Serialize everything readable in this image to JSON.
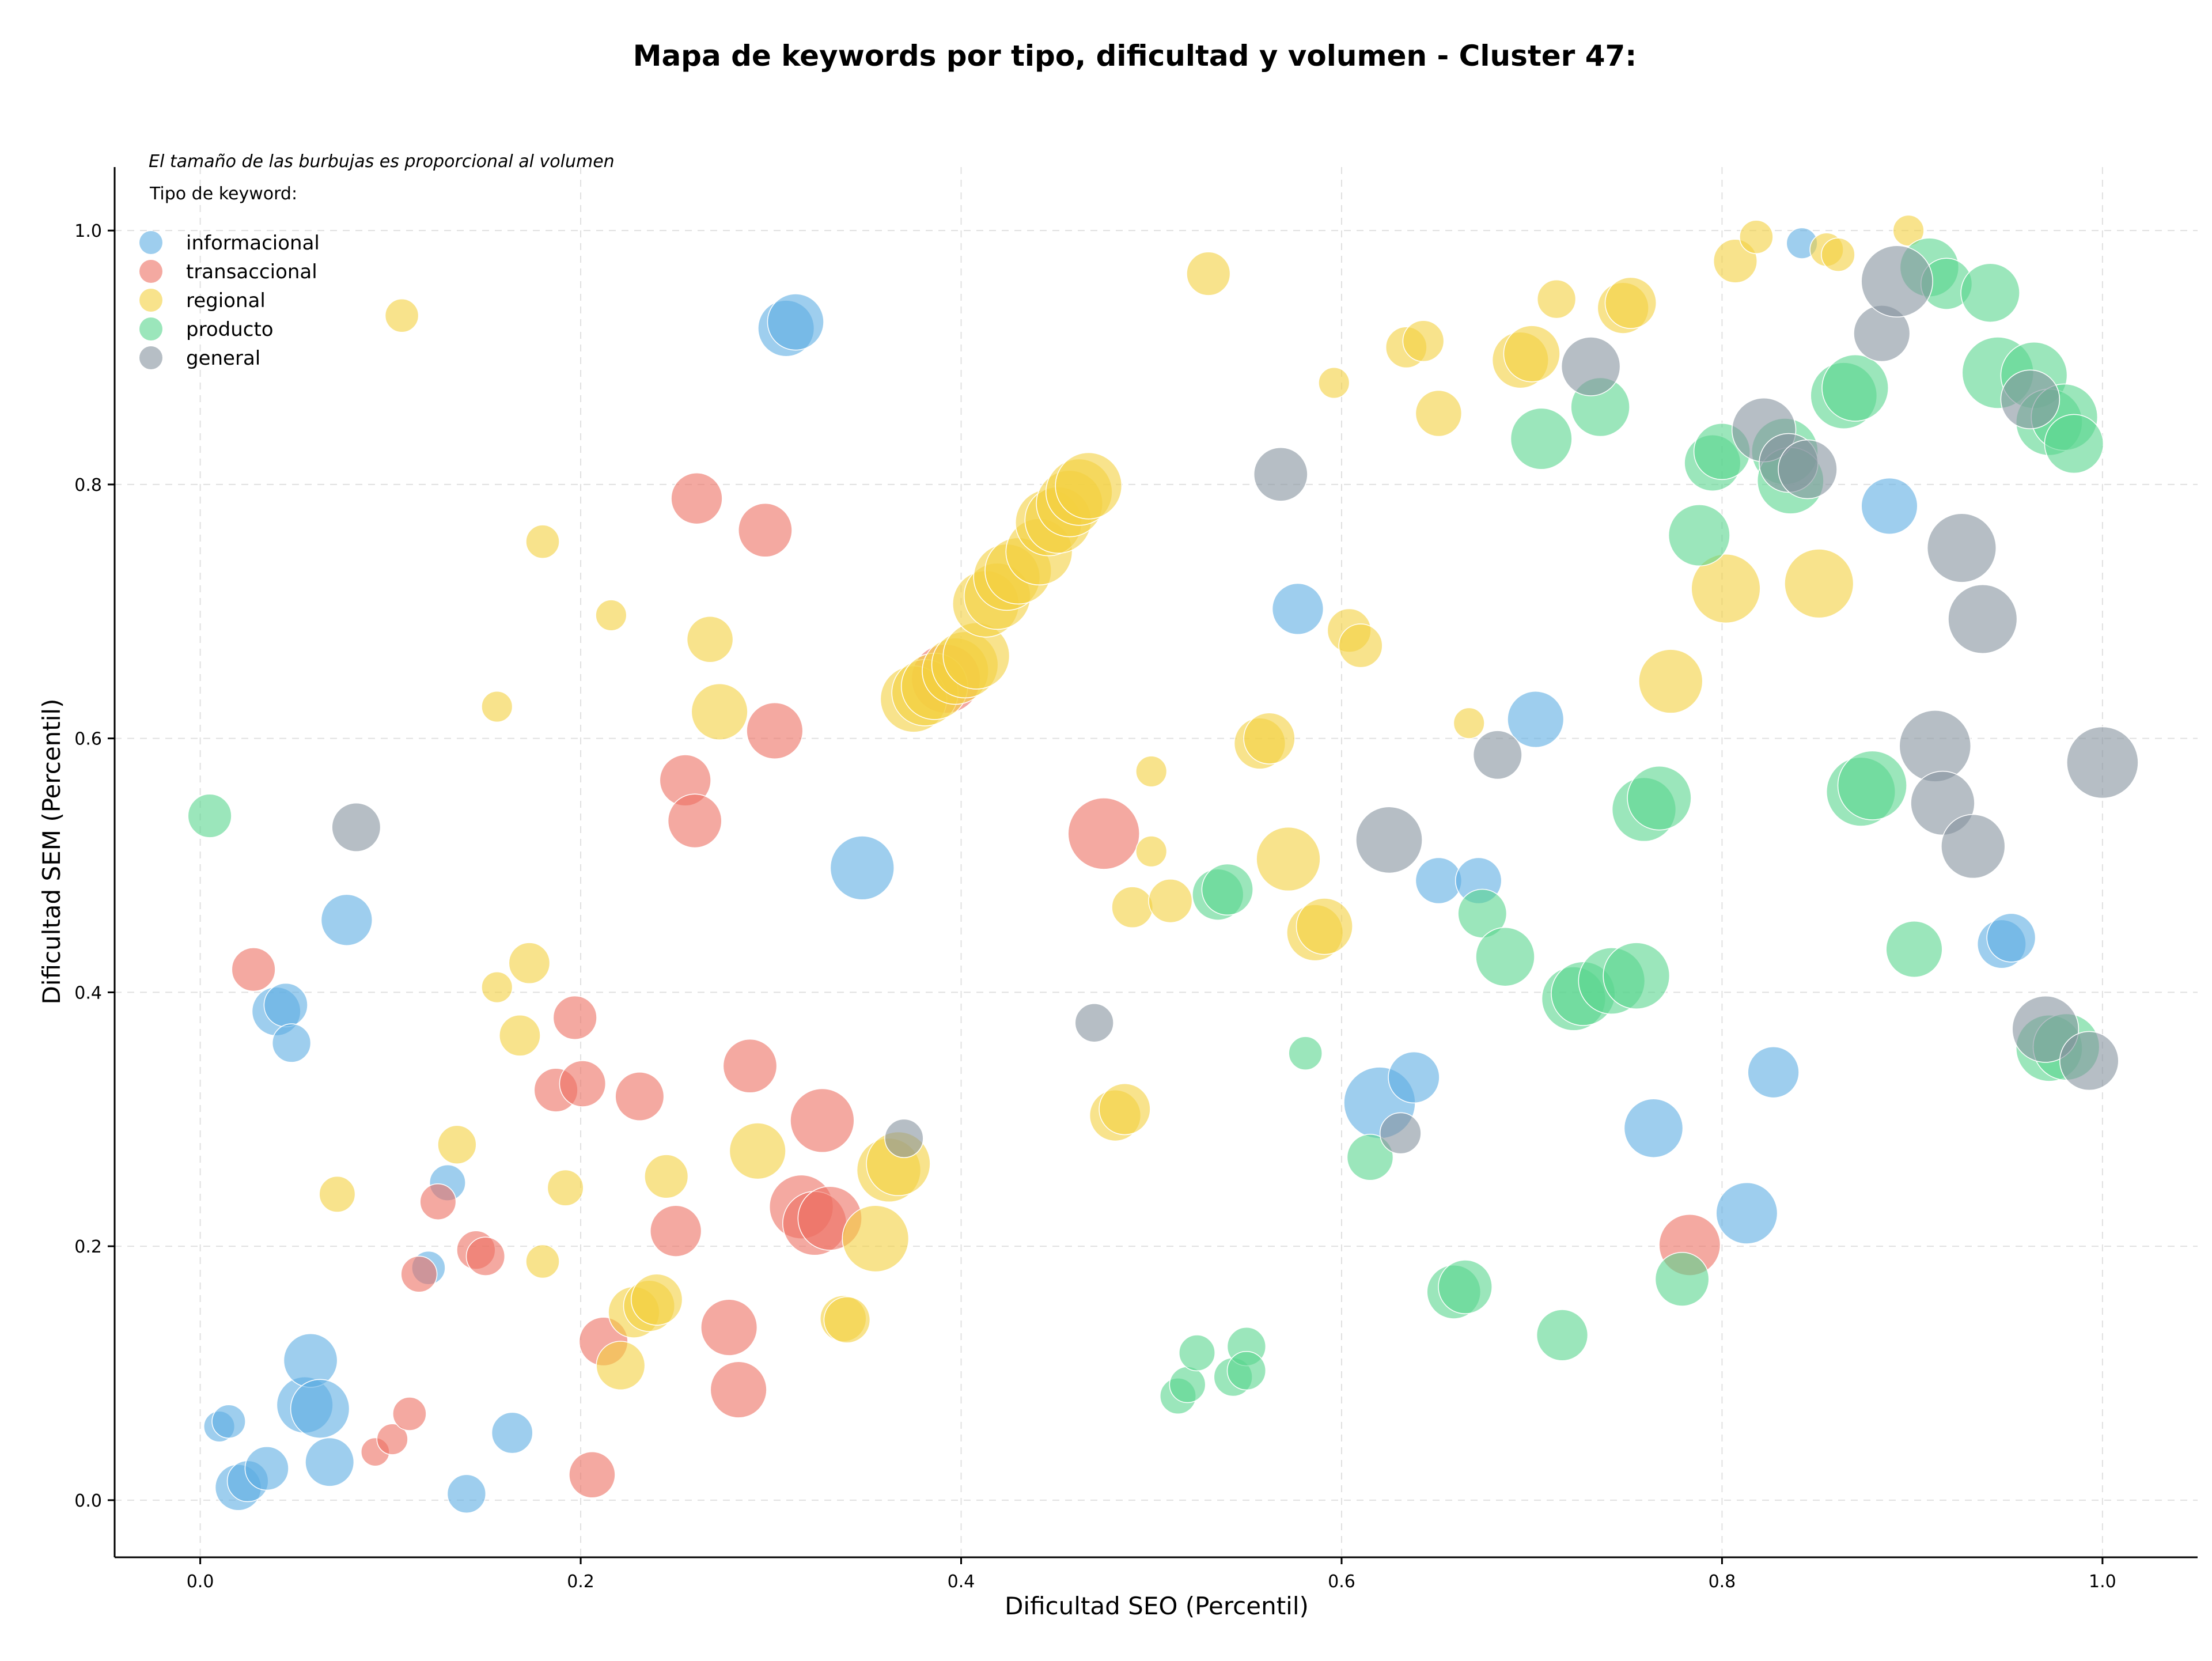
{
  "chart_data": {
    "type": "scatter",
    "title": "Mapa de keywords por tipo, dificultad y volumen - Cluster 47:",
    "xlabel": "Dificultad SEO (Percentil)",
    "ylabel": "Dificultad SEM (Percentil)",
    "xlim": [
      -0.045,
      1.05
    ],
    "ylim": [
      -0.045,
      1.05
    ],
    "x_ticks": [
      "0.0",
      "0.2",
      "0.4",
      "0.6",
      "0.8",
      "1.0"
    ],
    "y_ticks": [
      "0.0",
      "0.2",
      "0.4",
      "0.6",
      "0.8",
      "1.0"
    ],
    "grid": true,
    "annotation": "El tamaño de las burbujas es proporcional al volumen",
    "legend_title": "Tipo de keyword:",
    "legend_position": "top-left",
    "series": [
      {
        "name": "informacional",
        "color": "#5DADE2",
        "points": [
          [
            0.01,
            0.058,
            0.2
          ],
          [
            0.015,
            0.062,
            0.25
          ],
          [
            0.02,
            0.01,
            0.5
          ],
          [
            0.025,
            0.015,
            0.4
          ],
          [
            0.035,
            0.025,
            0.45
          ],
          [
            0.04,
            0.385,
            0.55
          ],
          [
            0.045,
            0.39,
            0.45
          ],
          [
            0.048,
            0.36,
            0.35
          ],
          [
            0.055,
            0.075,
            0.7
          ],
          [
            0.058,
            0.11,
            0.65
          ],
          [
            0.063,
            0.072,
            0.75
          ],
          [
            0.068,
            0.03,
            0.55
          ],
          [
            0.077,
            0.457,
            0.6
          ],
          [
            0.12,
            0.183,
            0.25
          ],
          [
            0.13,
            0.25,
            0.3
          ],
          [
            0.14,
            0.005,
            0.35
          ],
          [
            0.164,
            0.053,
            0.4
          ],
          [
            0.308,
            0.923,
            0.7
          ],
          [
            0.313,
            0.928,
            0.7
          ],
          [
            0.348,
            0.498,
            0.85
          ],
          [
            0.577,
            0.702,
            0.6
          ],
          [
            0.62,
            0.313,
            1.0
          ],
          [
            0.638,
            0.333,
            0.6
          ],
          [
            0.651,
            0.488,
            0.5
          ],
          [
            0.672,
            0.488,
            0.5
          ],
          [
            0.702,
            0.615,
            0.7
          ],
          [
            0.764,
            0.293,
            0.75
          ],
          [
            0.813,
            0.226,
            0.8
          ],
          [
            0.827,
            0.337,
            0.6
          ],
          [
            0.842,
            0.99,
            0.2
          ],
          [
            0.888,
            0.783,
            0.7
          ],
          [
            0.947,
            0.438,
            0.55
          ],
          [
            0.952,
            0.443,
            0.55
          ]
        ]
      },
      {
        "name": "transaccional",
        "color": "#EC7063",
        "points": [
          [
            0.028,
            0.418,
            0.45
          ],
          [
            0.092,
            0.038,
            0.15
          ],
          [
            0.101,
            0.048,
            0.2
          ],
          [
            0.11,
            0.068,
            0.25
          ],
          [
            0.115,
            0.178,
            0.3
          ],
          [
            0.125,
            0.235,
            0.3
          ],
          [
            0.145,
            0.197,
            0.35
          ],
          [
            0.15,
            0.192,
            0.35
          ],
          [
            0.187,
            0.323,
            0.45
          ],
          [
            0.197,
            0.38,
            0.45
          ],
          [
            0.201,
            0.328,
            0.5
          ],
          [
            0.206,
            0.02,
            0.5
          ],
          [
            0.212,
            0.125,
            0.55
          ],
          [
            0.231,
            0.318,
            0.55
          ],
          [
            0.25,
            0.212,
            0.6
          ],
          [
            0.255,
            0.567,
            0.6
          ],
          [
            0.26,
            0.535,
            0.65
          ],
          [
            0.261,
            0.789,
            0.6
          ],
          [
            0.278,
            0.136,
            0.7
          ],
          [
            0.283,
            0.087,
            0.7
          ],
          [
            0.289,
            0.342,
            0.65
          ],
          [
            0.297,
            0.764,
            0.65
          ],
          [
            0.302,
            0.606,
            0.7
          ],
          [
            0.316,
            0.231,
            0.85
          ],
          [
            0.323,
            0.218,
            0.85
          ],
          [
            0.327,
            0.299,
            0.85
          ],
          [
            0.331,
            0.222,
            0.85
          ],
          [
            0.475,
            0.525,
            1.0
          ],
          [
            0.392,
            0.647,
            0.95
          ],
          [
            0.783,
            0.201,
            0.8
          ]
        ]
      },
      {
        "name": "regional",
        "color": "#F4D03F",
        "points": [
          [
            0.072,
            0.241,
            0.3
          ],
          [
            0.106,
            0.933,
            0.25
          ],
          [
            0.135,
            0.28,
            0.35
          ],
          [
            0.156,
            0.404,
            0.2
          ],
          [
            0.156,
            0.625,
            0.2
          ],
          [
            0.168,
            0.366,
            0.4
          ],
          [
            0.173,
            0.423,
            0.4
          ],
          [
            0.18,
            0.188,
            0.25
          ],
          [
            0.18,
            0.755,
            0.25
          ],
          [
            0.192,
            0.246,
            0.3
          ],
          [
            0.216,
            0.697,
            0.2
          ],
          [
            0.221,
            0.106,
            0.55
          ],
          [
            0.228,
            0.148,
            0.6
          ],
          [
            0.236,
            0.153,
            0.6
          ],
          [
            0.24,
            0.158,
            0.6
          ],
          [
            0.245,
            0.255,
            0.45
          ],
          [
            0.268,
            0.678,
            0.5
          ],
          [
            0.273,
            0.621,
            0.7
          ],
          [
            0.293,
            0.275,
            0.7
          ],
          [
            0.338,
            0.143,
            0.5
          ],
          [
            0.34,
            0.142,
            0.5
          ],
          [
            0.355,
            0.206,
            0.9
          ],
          [
            0.362,
            0.26,
            0.85
          ],
          [
            0.367,
            0.265,
            0.85
          ],
          [
            0.375,
            0.631,
            0.9
          ],
          [
            0.381,
            0.636,
            0.9
          ],
          [
            0.386,
            0.641,
            0.9
          ],
          [
            0.397,
            0.653,
            0.9
          ],
          [
            0.402,
            0.658,
            0.9
          ],
          [
            0.408,
            0.665,
            0.9
          ],
          [
            0.413,
            0.706,
            0.9
          ],
          [
            0.419,
            0.712,
            0.9
          ],
          [
            0.424,
            0.727,
            0.9
          ],
          [
            0.43,
            0.732,
            0.9
          ],
          [
            0.441,
            0.747,
            0.9
          ],
          [
            0.446,
            0.77,
            0.9
          ],
          [
            0.451,
            0.772,
            0.9
          ],
          [
            0.457,
            0.785,
            0.9
          ],
          [
            0.462,
            0.794,
            0.9
          ],
          [
            0.467,
            0.799,
            0.9
          ],
          [
            0.481,
            0.303,
            0.6
          ],
          [
            0.486,
            0.308,
            0.6
          ],
          [
            0.49,
            0.467,
            0.4
          ],
          [
            0.5,
            0.511,
            0.2
          ],
          [
            0.5,
            0.574,
            0.2
          ],
          [
            0.51,
            0.472,
            0.45
          ],
          [
            0.53,
            0.966,
            0.45
          ],
          [
            0.557,
            0.596,
            0.6
          ],
          [
            0.562,
            0.6,
            0.6
          ],
          [
            0.572,
            0.505,
            0.85
          ],
          [
            0.586,
            0.447,
            0.7
          ],
          [
            0.591,
            0.452,
            0.7
          ],
          [
            0.596,
            0.88,
            0.2
          ],
          [
            0.604,
            0.685,
            0.45
          ],
          [
            0.61,
            0.673,
            0.45
          ],
          [
            0.634,
            0.908,
            0.4
          ],
          [
            0.643,
            0.913,
            0.4
          ],
          [
            0.651,
            0.856,
            0.5
          ],
          [
            0.667,
            0.612,
            0.2
          ],
          [
            0.694,
            0.898,
            0.7
          ],
          [
            0.7,
            0.903,
            0.7
          ],
          [
            0.713,
            0.946,
            0.35
          ],
          [
            0.748,
            0.939,
            0.6
          ],
          [
            0.752,
            0.943,
            0.6
          ],
          [
            0.773,
            0.645,
            0.85
          ],
          [
            0.802,
            0.718,
            0.95
          ],
          [
            0.807,
            0.976,
            0.45
          ],
          [
            0.818,
            0.995,
            0.25
          ],
          [
            0.851,
            0.722,
            0.95
          ],
          [
            0.855,
            0.985,
            0.25
          ],
          [
            0.861,
            0.981,
            0.25
          ],
          [
            0.898,
            1.0,
            0.2
          ]
        ]
      },
      {
        "name": "producto",
        "color": "#58D68D",
        "points": [
          [
            0.005,
            0.539,
            0.45
          ],
          [
            0.514,
            0.082,
            0.3
          ],
          [
            0.519,
            0.091,
            0.3
          ],
          [
            0.524,
            0.116,
            0.3
          ],
          [
            0.535,
            0.477,
            0.6
          ],
          [
            0.54,
            0.481,
            0.6
          ],
          [
            0.543,
            0.097,
            0.35
          ],
          [
            0.55,
            0.121,
            0.35
          ],
          [
            0.55,
            0.102,
            0.35
          ],
          [
            0.581,
            0.352,
            0.25
          ],
          [
            0.615,
            0.27,
            0.5
          ],
          [
            0.659,
            0.164,
            0.65
          ],
          [
            0.665,
            0.168,
            0.65
          ],
          [
            0.674,
            0.462,
            0.55
          ],
          [
            0.686,
            0.428,
            0.75
          ],
          [
            0.705,
            0.836,
            0.8
          ],
          [
            0.716,
            0.13,
            0.6
          ],
          [
            0.722,
            0.395,
            0.85
          ],
          [
            0.727,
            0.399,
            0.85
          ],
          [
            0.736,
            0.861,
            0.75
          ],
          [
            0.742,
            0.409,
            0.9
          ],
          [
            0.755,
            0.413,
            0.9
          ],
          [
            0.759,
            0.544,
            0.85
          ],
          [
            0.767,
            0.553,
            0.85
          ],
          [
            0.779,
            0.174,
            0.65
          ],
          [
            0.788,
            0.76,
            0.8
          ],
          [
            0.795,
            0.817,
            0.7
          ],
          [
            0.8,
            0.826,
            0.7
          ],
          [
            0.833,
            0.826,
            0.9
          ],
          [
            0.836,
            0.803,
            0.9
          ],
          [
            0.864,
            0.87,
            0.9
          ],
          [
            0.87,
            0.876,
            0.9
          ],
          [
            0.873,
            0.558,
            0.95
          ],
          [
            0.879,
            0.563,
            0.95
          ],
          [
            0.901,
            0.434,
            0.7
          ],
          [
            0.909,
            0.971,
            0.75
          ],
          [
            0.918,
            0.958,
            0.6
          ],
          [
            0.941,
            0.951,
            0.75
          ],
          [
            0.945,
            0.888,
            1.0
          ],
          [
            0.964,
            0.886,
            0.9
          ],
          [
            0.972,
            0.849,
            0.9
          ],
          [
            0.98,
            0.853,
            0.9
          ],
          [
            0.985,
            0.832,
            0.75
          ],
          [
            0.972,
            0.356,
            0.9
          ],
          [
            0.981,
            0.357,
            0.9
          ]
        ]
      },
      {
        "name": "general",
        "color": "#85929E",
        "points": [
          [
            0.082,
            0.53,
            0.55
          ],
          [
            0.37,
            0.285,
            0.35
          ],
          [
            0.47,
            0.376,
            0.35
          ],
          [
            0.568,
            0.808,
            0.65
          ],
          [
            0.625,
            0.52,
            0.9
          ],
          [
            0.631,
            0.289,
            0.4
          ],
          [
            0.682,
            0.587,
            0.55
          ],
          [
            0.731,
            0.893,
            0.75
          ],
          [
            0.822,
            0.843,
            0.85
          ],
          [
            0.835,
            0.817,
            0.75
          ],
          [
            0.845,
            0.812,
            0.75
          ],
          [
            0.884,
            0.919,
            0.7
          ],
          [
            0.892,
            0.96,
            1.0
          ],
          [
            0.926,
            0.75,
            0.95
          ],
          [
            0.912,
            0.594,
            1.0
          ],
          [
            0.916,
            0.549,
            0.85
          ],
          [
            0.932,
            0.515,
            0.85
          ],
          [
            0.937,
            0.694,
            0.95
          ],
          [
            0.962,
            0.867,
            0.75
          ],
          [
            0.97,
            0.371,
            0.9
          ],
          [
            0.993,
            0.346,
            0.75
          ],
          [
            1.0,
            0.581,
            1.0
          ]
        ]
      }
    ]
  }
}
